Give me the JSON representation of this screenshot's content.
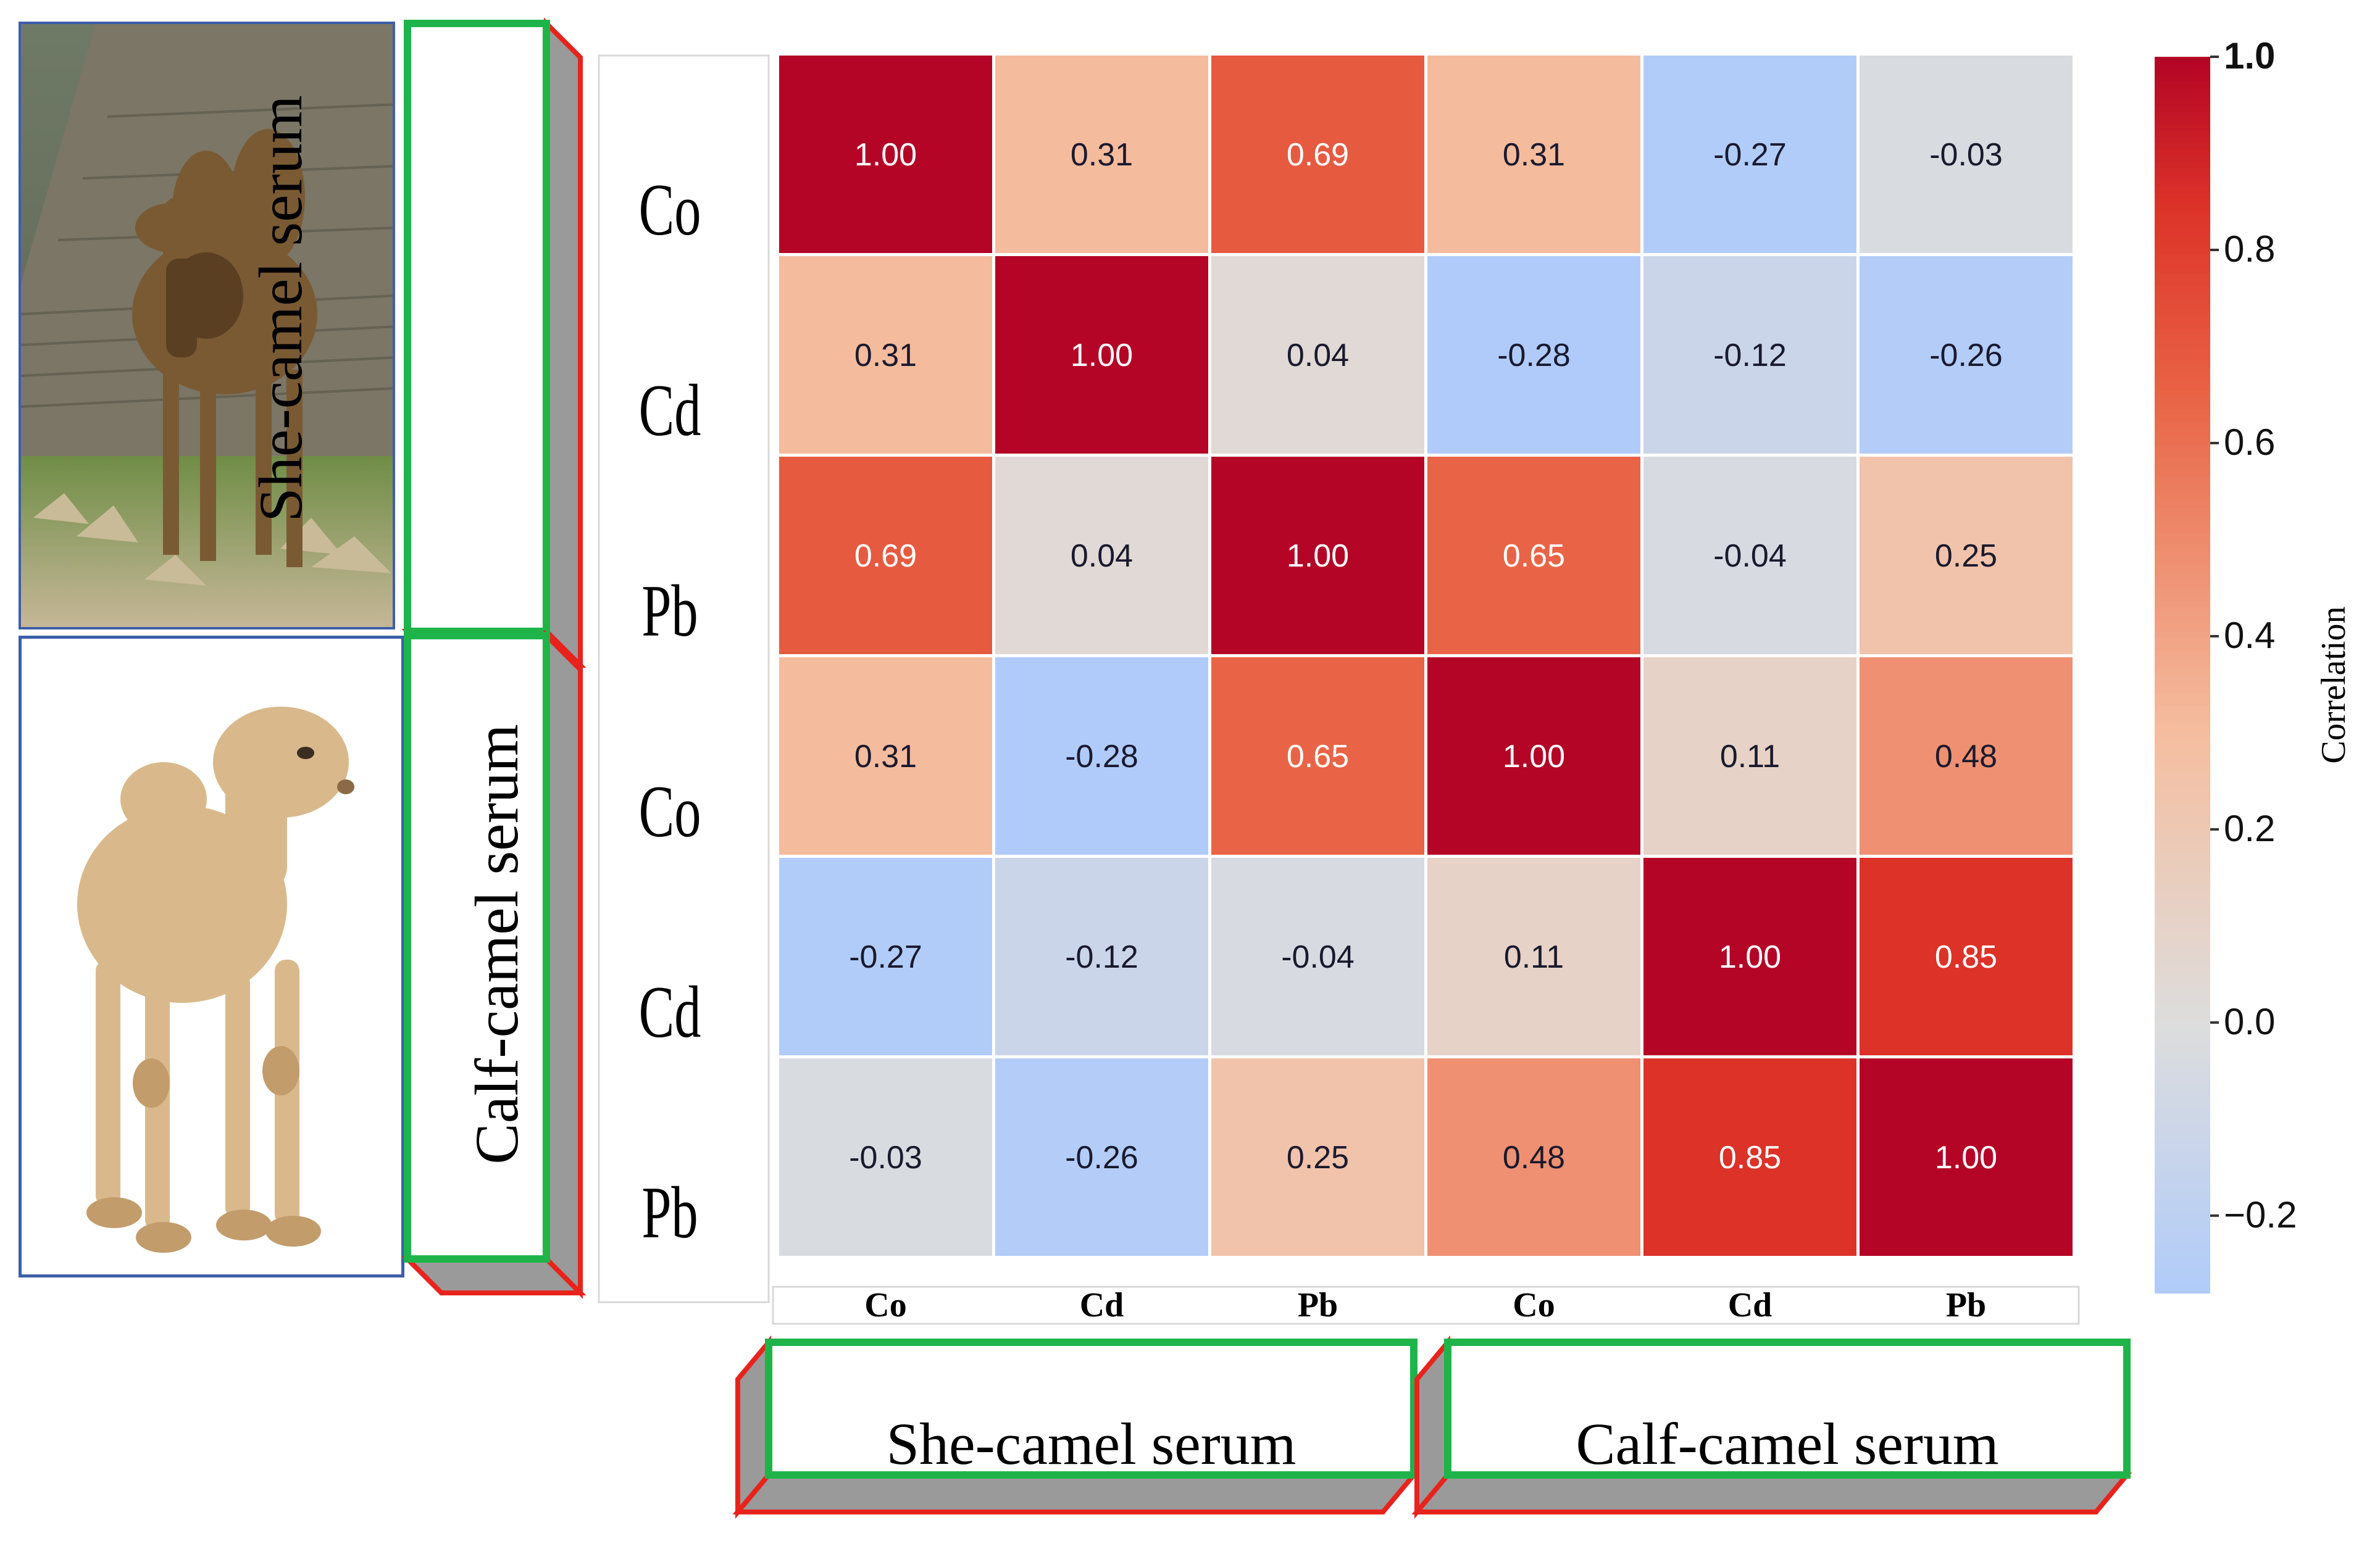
{
  "chart_data": {
    "type": "heatmap",
    "title": "",
    "row_labels": [
      "Co",
      "Cd",
      "Pb",
      "Co",
      "Cd",
      "Pb"
    ],
    "col_labels": [
      "Co",
      "Cd",
      "Pb",
      "Co",
      "Cd",
      "Pb"
    ],
    "row_groups": [
      "She-camel serum",
      "Calf-camel serum"
    ],
    "col_groups": [
      "She-camel serum",
      "Calf-camel serum"
    ],
    "values": [
      [
        1.0,
        0.31,
        0.69,
        0.31,
        -0.27,
        -0.03
      ],
      [
        0.31,
        1.0,
        0.04,
        -0.28,
        -0.12,
        -0.26
      ],
      [
        0.69,
        0.04,
        1.0,
        0.65,
        -0.04,
        0.25
      ],
      [
        0.31,
        -0.28,
        0.65,
        1.0,
        0.11,
        0.48
      ],
      [
        -0.27,
        -0.12,
        -0.04,
        0.11,
        1.0,
        0.85
      ],
      [
        -0.03,
        -0.26,
        0.25,
        0.48,
        0.85,
        1.0
      ]
    ],
    "value_labels": [
      [
        "1.00",
        "0.31",
        "0.69",
        "0.31",
        "-0.27",
        "-0.03"
      ],
      [
        "0.31",
        "1.00",
        "0.04",
        "-0.28",
        "-0.12",
        "-0.26"
      ],
      [
        "0.69",
        "0.04",
        "1.00",
        "0.65",
        "-0.04",
        "0.25"
      ],
      [
        "0.31",
        "-0.28",
        "0.65",
        "1.00",
        "0.11",
        "0.48"
      ],
      [
        "-0.27",
        "-0.12",
        "-0.04",
        "0.11",
        "1.00",
        "0.85"
      ],
      [
        "-0.03",
        "-0.26",
        "0.25",
        "0.48",
        "0.85",
        "1.00"
      ]
    ],
    "colorbar": {
      "label": "Correlation",
      "range": [
        -0.28,
        1.0
      ],
      "colormap": "coolwarm",
      "ticks": [
        {
          "value": 1.0,
          "label": "1.0"
        },
        {
          "value": 0.8,
          "label": "0.8"
        },
        {
          "value": 0.6,
          "label": "0.6"
        },
        {
          "value": 0.4,
          "label": "0.4"
        },
        {
          "value": 0.2,
          "label": "0.2"
        },
        {
          "value": 0.0,
          "label": "0.0"
        },
        {
          "value": -0.2,
          "label": "−0.2"
        }
      ]
    }
  },
  "colors": {
    "frame_green": "#1fb44a",
    "frame_red": "#e8231d",
    "frame_shadow": "#9a9a9a",
    "photo_border": "#3c5fa8"
  },
  "icons": {
    "top_photo": "adult-camel-photo",
    "bottom_photo": "calf-camel-photo"
  }
}
